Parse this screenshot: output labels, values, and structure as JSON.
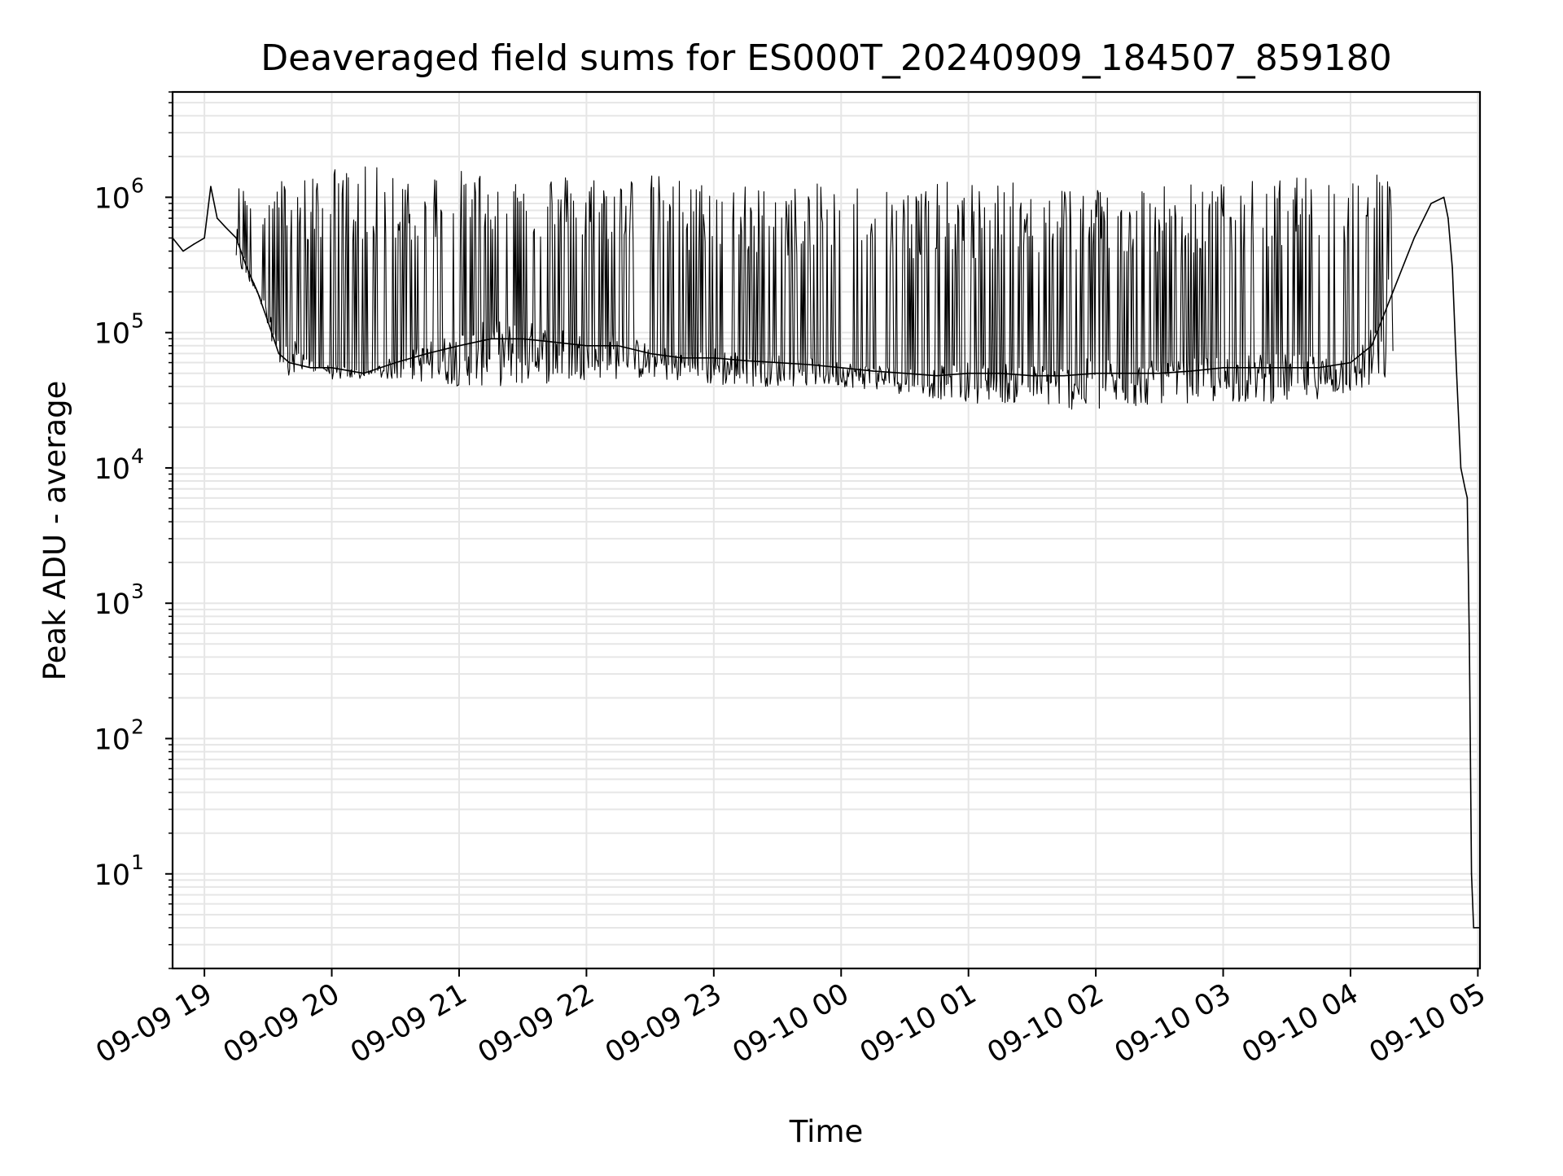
{
  "chart_data": {
    "type": "line",
    "title": "Deaveraged field sums for ES000T_20240909_184507_859180",
    "xlabel": "Time",
    "ylabel": "Peak ADU - average",
    "x_is_time": true,
    "xlim": [
      "2024-09-09 18:45",
      "2024-09-10 05:01"
    ],
    "ylim": [
      2,
      6000000
    ],
    "yscale": "log",
    "grid": true,
    "legend": "none",
    "line_color": "#000000",
    "x_ticks": [
      {
        "value": "2024-09-09 19:00",
        "label": "09-09 19"
      },
      {
        "value": "2024-09-09 20:00",
        "label": "09-09 20"
      },
      {
        "value": "2024-09-09 21:00",
        "label": "09-09 21"
      },
      {
        "value": "2024-09-09 22:00",
        "label": "09-09 22"
      },
      {
        "value": "2024-09-09 23:00",
        "label": "09-09 23"
      },
      {
        "value": "2024-09-10 00:00",
        "label": "09-10 00"
      },
      {
        "value": "2024-09-10 01:00",
        "label": "09-10 01"
      },
      {
        "value": "2024-09-10 02:00",
        "label": "09-10 02"
      },
      {
        "value": "2024-09-10 03:00",
        "label": "09-10 03"
      },
      {
        "value": "2024-09-10 04:00",
        "label": "09-10 04"
      },
      {
        "value": "2024-09-10 05:00",
        "label": "09-10 05"
      }
    ],
    "y_ticks": [
      {
        "value": 10,
        "base": "10",
        "exp": "1"
      },
      {
        "value": 100,
        "base": "10",
        "exp": "2"
      },
      {
        "value": 1000,
        "base": "10",
        "exp": "3"
      },
      {
        "value": 10000,
        "base": "10",
        "exp": "4"
      },
      {
        "value": 100000,
        "base": "10",
        "exp": "5"
      },
      {
        "value": 1000000,
        "base": "10",
        "exp": "6"
      }
    ],
    "series": [
      {
        "x": [
          "2024-09-09 18:45",
          "2024-09-09 18:50",
          "2024-09-09 18:55",
          "2024-09-09 19:00",
          "2024-09-09 19:03",
          "2024-09-09 19:06",
          "2024-09-09 19:10",
          "2024-09-09 19:15",
          "2024-09-09 19:20",
          "2024-09-09 19:25",
          "2024-09-09 19:30",
          "2024-09-09 19:35",
          "2024-09-09 19:40",
          "2024-09-09 19:50",
          "2024-09-09 20:00",
          "2024-09-09 20:15",
          "2024-09-09 20:30",
          "2024-09-09 20:45",
          "2024-09-09 21:00",
          "2024-09-09 21:15",
          "2024-09-09 21:30",
          "2024-09-09 21:45",
          "2024-09-09 22:00",
          "2024-09-09 22:15",
          "2024-09-09 22:30",
          "2024-09-09 22:45",
          "2024-09-09 23:00",
          "2024-09-09 23:15",
          "2024-09-09 23:30",
          "2024-09-09 23:45",
          "2024-09-10 00:00",
          "2024-09-10 00:15",
          "2024-09-10 00:30",
          "2024-09-10 00:45",
          "2024-09-10 01:00",
          "2024-09-10 01:15",
          "2024-09-10 01:30",
          "2024-09-10 01:45",
          "2024-09-10 02:00",
          "2024-09-10 02:15",
          "2024-09-10 02:30",
          "2024-09-10 02:45",
          "2024-09-10 03:00",
          "2024-09-10 03:15",
          "2024-09-10 03:30",
          "2024-09-10 03:45",
          "2024-09-10 04:00",
          "2024-09-10 04:10",
          "2024-09-10 04:20",
          "2024-09-10 04:30",
          "2024-09-10 04:38",
          "2024-09-10 04:44",
          "2024-09-10 04:46",
          "2024-09-10 04:48",
          "2024-09-10 04:50",
          "2024-09-10 04:52",
          "2024-09-10 04:54",
          "2024-09-10 04:55",
          "2024-09-10 04:56",
          "2024-09-10 04:57",
          "2024-09-10 04:58",
          "2024-09-10 05:01"
        ],
        "y": [
          500000,
          400000,
          450000,
          500000,
          1200000,
          700000,
          600000,
          500000,
          300000,
          200000,
          120000,
          70000,
          60000,
          55000,
          55000,
          50000,
          60000,
          70000,
          80000,
          90000,
          90000,
          85000,
          80000,
          80000,
          70000,
          65000,
          65000,
          62000,
          60000,
          58000,
          55000,
          52000,
          50000,
          48000,
          50000,
          50000,
          48000,
          48000,
          50000,
          50000,
          50000,
          52000,
          55000,
          55000,
          55000,
          55000,
          60000,
          80000,
          200000,
          500000,
          900000,
          1000000,
          700000,
          300000,
          50000,
          10000,
          7000,
          6000,
          500,
          10,
          4,
          4
        ],
        "envelope_x": [
          "2024-09-09 19:15",
          "2024-09-09 20:00",
          "2024-09-09 20:30",
          "2024-09-09 21:00",
          "2024-09-09 21:30",
          "2024-09-09 22:00",
          "2024-09-09 22:30",
          "2024-09-09 23:00",
          "2024-09-09 23:30",
          "2024-09-10 00:00",
          "2024-09-10 00:30",
          "2024-09-10 01:00",
          "2024-09-10 01:30",
          "2024-09-10 02:00",
          "2024-09-10 02:30",
          "2024-09-10 03:00",
          "2024-09-10 03:30",
          "2024-09-10 04:00",
          "2024-09-10 04:20"
        ],
        "envelope_high": [
          1200000,
          1700000,
          1700000,
          1600000,
          1600000,
          1500000,
          1500000,
          1300000,
          1200000,
          1300000,
          1300000,
          1300000,
          1300000,
          1300000,
          1300000,
          1300000,
          1400000,
          1500000,
          1700000
        ],
        "envelope_low": [
          300000,
          45000,
          45000,
          40000,
          40000,
          45000,
          45000,
          40000,
          40000,
          40000,
          35000,
          30000,
          30000,
          25000,
          30000,
          30000,
          30000,
          35000,
          40000
        ]
      }
    ]
  }
}
